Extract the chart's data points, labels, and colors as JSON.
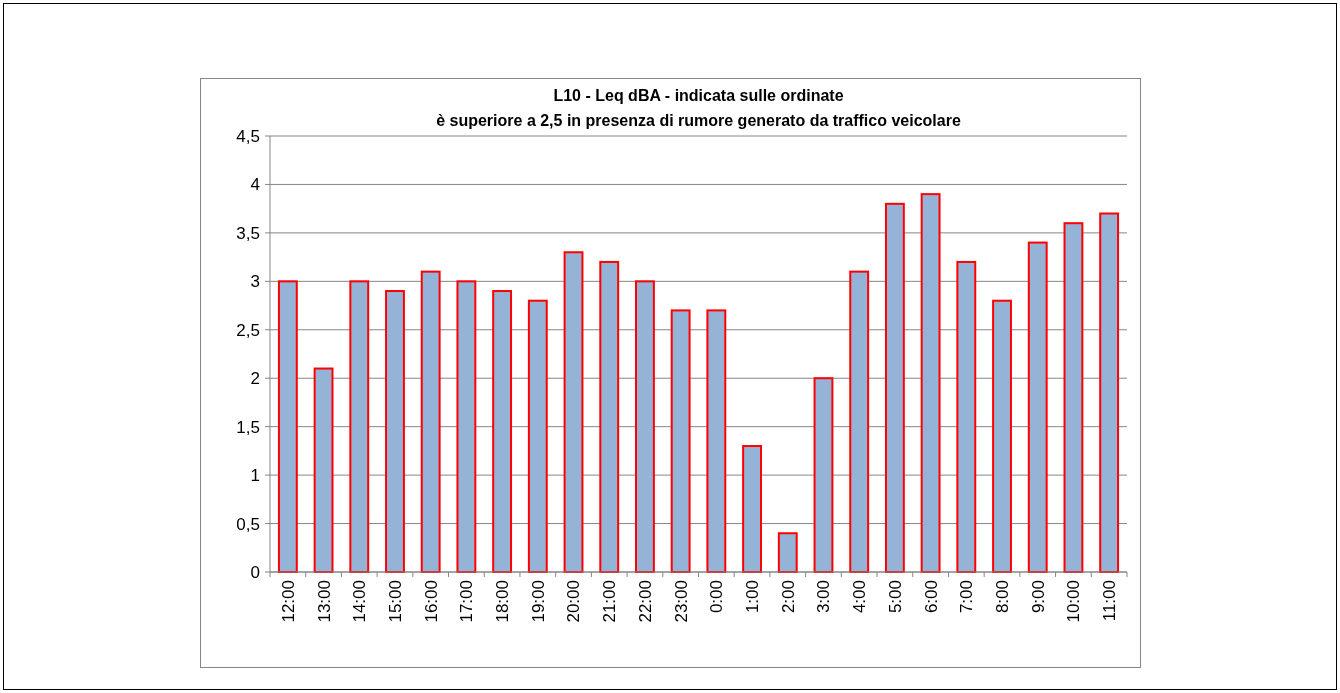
{
  "chart_data": {
    "type": "bar",
    "title": "L10 - Leq dBA - indicata sulle ordinate\nè superiore a 2,5 in presenza di rumore generato da traffico veicolare",
    "categories": [
      "12:00",
      "13:00",
      "14:00",
      "15:00",
      "16:00",
      "17:00",
      "18:00",
      "19:00",
      "20:00",
      "21:00",
      "22:00",
      "23:00",
      "0:00",
      "1:00",
      "2:00",
      "3:00",
      "4:00",
      "5:00",
      "6:00",
      "7:00",
      "8:00",
      "9:00",
      "10:00",
      "11:00"
    ],
    "series": [
      {
        "color": "#95b3d7",
        "values": [
          3.0,
          2.1,
          3.0,
          2.9,
          3.1,
          3.0,
          2.9,
          2.8,
          3.3,
          3.2,
          3.0,
          2.7,
          2.7,
          1.3,
          0.4,
          2.0,
          3.1,
          3.8,
          3.9,
          3.2,
          2.8,
          3.4,
          3.6,
          3.7
        ]
      }
    ],
    "ylim": [
      0,
      4.5
    ],
    "yticks": [
      0,
      {
        "value": 0.5,
        "label": "0,5"
      },
      1,
      {
        "value": 1.5,
        "label": "1,5"
      },
      2,
      {
        "value": 2.5,
        "label": "2,5"
      },
      3,
      {
        "value": 3.5,
        "label": "3,5"
      },
      4,
      {
        "value": 4.5,
        "label": "4,5"
      }
    ],
    "grid": "y"
  }
}
